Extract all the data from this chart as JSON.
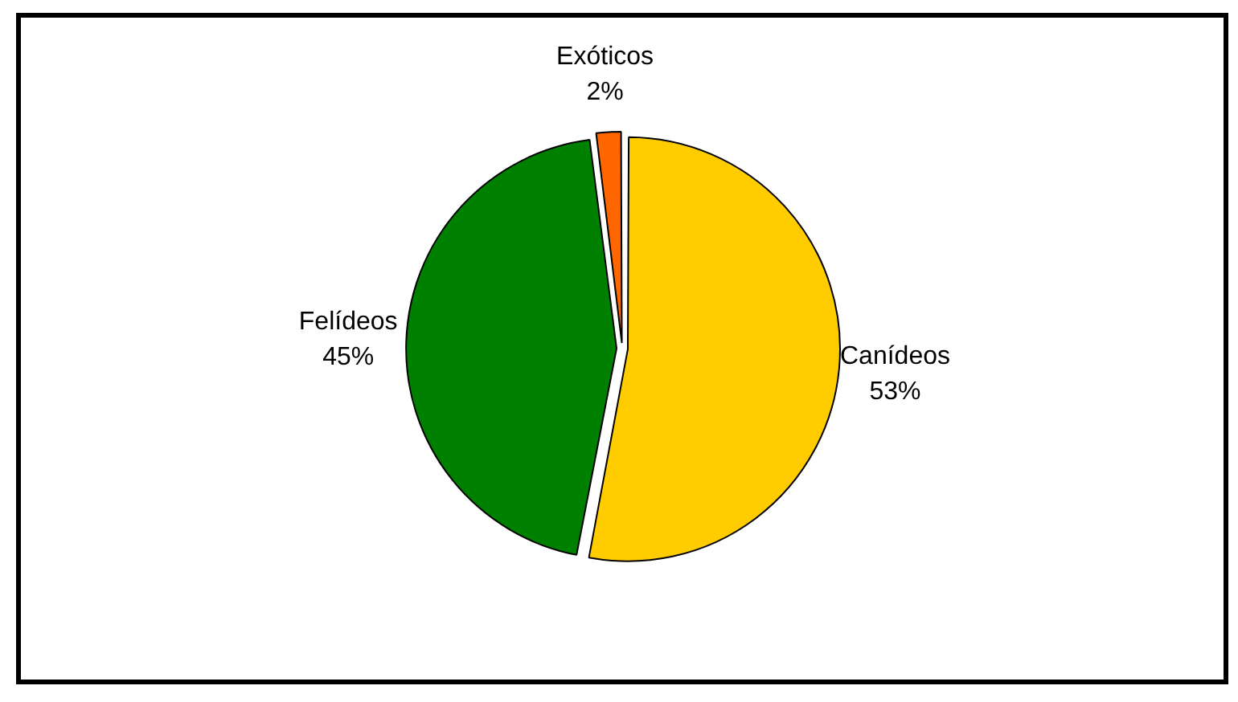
{
  "chart_data": {
    "type": "pie",
    "categories": [
      "Canídeos",
      "Felídeos",
      "Exóticos"
    ],
    "values": [
      53,
      45,
      2
    ],
    "colors": [
      "#ffcc00",
      "#008000",
      "#ff6600"
    ],
    "value_labels": [
      "53%",
      "45%",
      "2%"
    ],
    "legend": false
  }
}
